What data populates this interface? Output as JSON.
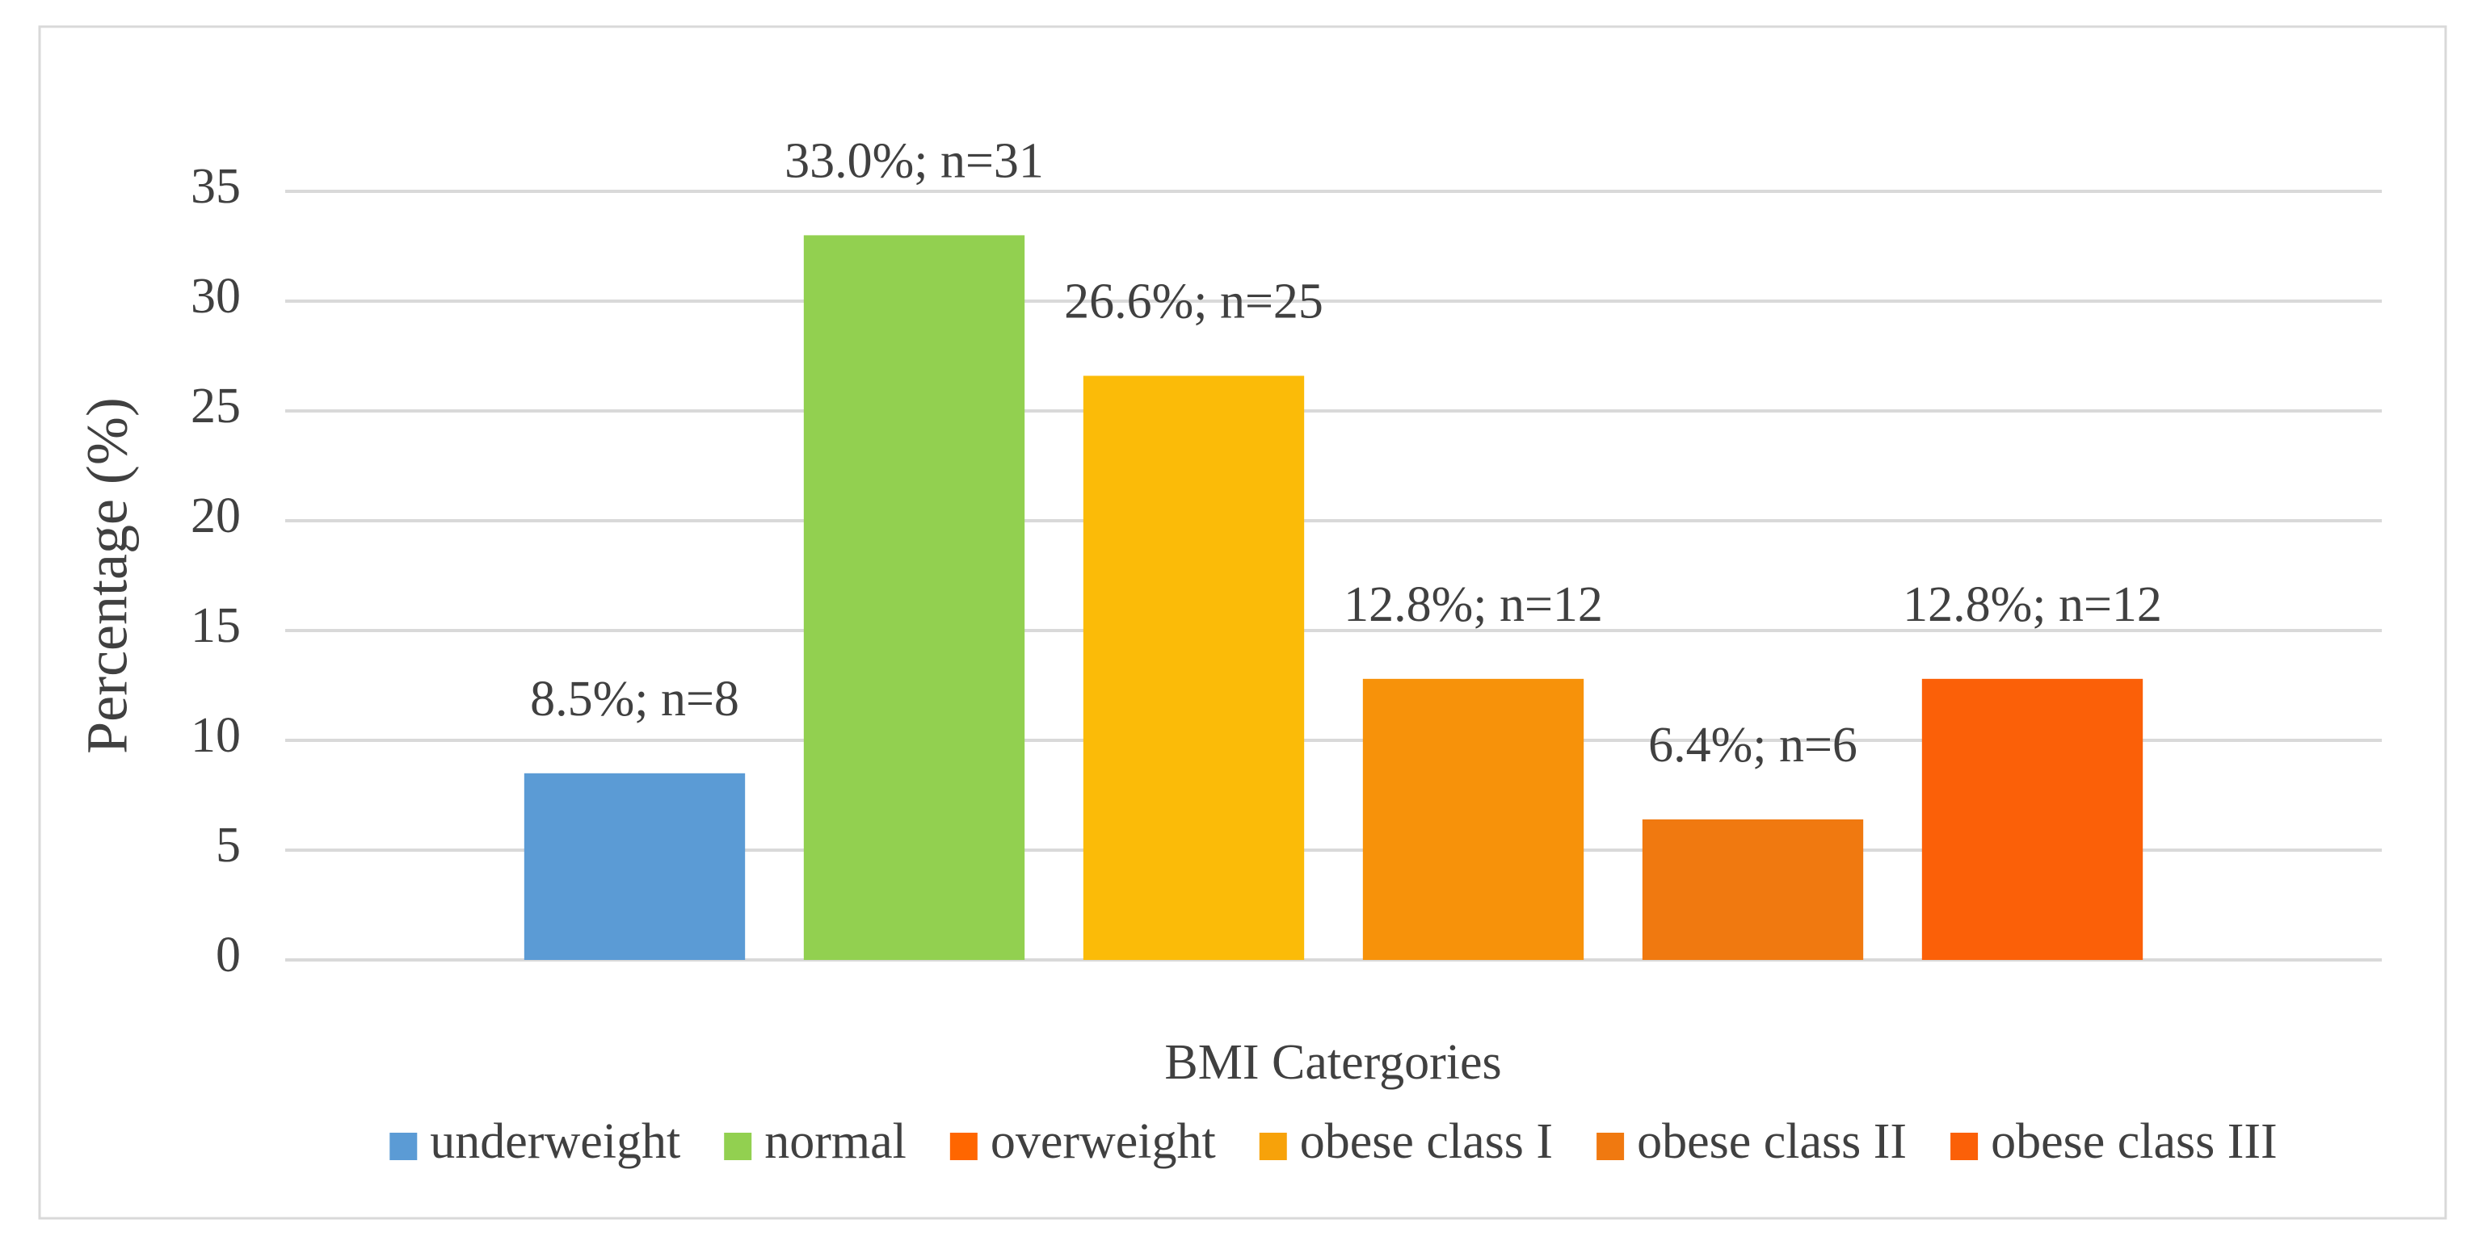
{
  "chart_data": {
    "type": "bar",
    "y_label": "Percentage (%)",
    "x_label": "BMI Catergories",
    "ylim": [
      0,
      35
    ],
    "yticks": [
      0,
      5,
      10,
      15,
      20,
      25,
      30,
      35
    ],
    "grid": true,
    "legend": "bottom",
    "series": [
      {
        "name": "underweight",
        "color": "#5b9bd5",
        "legend_color": "#5b9bd5",
        "values": [
          8.5
        ],
        "value_labels": [
          "8.5%; n=8"
        ]
      },
      {
        "name": "normal",
        "color": "#92d050",
        "legend_color": "#92d050",
        "values": [
          33.0
        ],
        "value_labels": [
          "33.0%; n=31"
        ]
      },
      {
        "name": "overweight",
        "color": "#fbbb08",
        "legend_color": "#ff6600",
        "values": [
          26.6
        ],
        "value_labels": [
          "26.6%; n=25"
        ]
      },
      {
        "name": "obese class I",
        "color": "#f7920a",
        "legend_color": "#f7a20a",
        "values": [
          12.8
        ],
        "value_labels": [
          "12.8%; n=12"
        ]
      },
      {
        "name": "obese class II",
        "color": "#f07910",
        "legend_color": "#f07910",
        "values": [
          6.4
        ],
        "value_labels": [
          "6.4%; n=6"
        ]
      },
      {
        "name": "obese class III",
        "color": "#fb6008",
        "legend_color": "#fb6008",
        "values": [
          12.8
        ],
        "value_labels": [
          "12.8%; n=12"
        ]
      }
    ]
  }
}
